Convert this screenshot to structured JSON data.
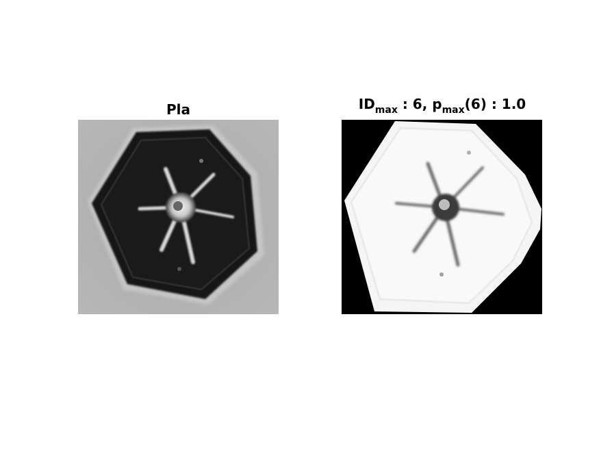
{
  "left_panel": {
    "title": "Pla"
  },
  "right_panel": {
    "title_prefix": "ID",
    "title_sub1": "max",
    "title_mid": " : 6, p",
    "title_sub2": "max",
    "title_suffix": "(6) : 1.0"
  }
}
